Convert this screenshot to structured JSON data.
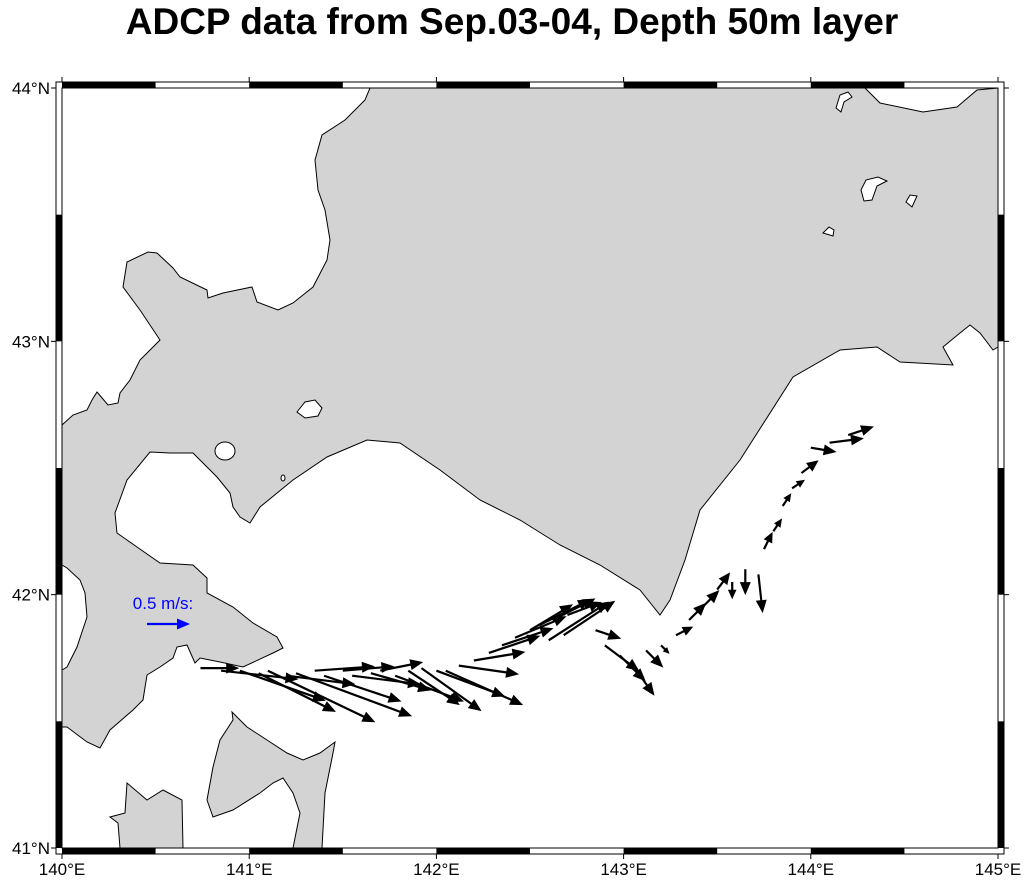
{
  "title": "ADCP data from Sep.03-04, Depth 50m layer",
  "map": {
    "region": {
      "lon_min": 140,
      "lon_max": 145,
      "lat_min": 41,
      "lat_max": 44
    },
    "land_color": "#d3d3d3",
    "sea_color": "#ffffff",
    "coast_color": "#000000",
    "frame_style": "fancy checkered border, 0.5 degree intervals",
    "x_ticks": [
      {
        "value": 140,
        "label": "140°E"
      },
      {
        "value": 141,
        "label": "141°E"
      },
      {
        "value": 142,
        "label": "142°E"
      },
      {
        "value": 143,
        "label": "143°E"
      },
      {
        "value": 144,
        "label": "144°E"
      },
      {
        "value": 145,
        "label": "145°E"
      }
    ],
    "y_ticks": [
      {
        "value": 41,
        "label": "41°N"
      },
      {
        "value": 42,
        "label": "42°N"
      },
      {
        "value": 43,
        "label": "43°N"
      },
      {
        "value": 44,
        "label": "44°N"
      }
    ]
  },
  "legend": {
    "label": "0.5 m/s:",
    "speed": 0.5,
    "color": "#0000ff"
  },
  "vector_color": "#000000",
  "vectors_columns": [
    "lon",
    "lat",
    "u_mps",
    "v_mps"
  ],
  "vectors": [
    [
      140.74,
      41.71,
      0.45,
      0.0
    ],
    [
      140.85,
      41.7,
      0.9,
      -0.1
    ],
    [
      140.95,
      41.7,
      1.0,
      -0.35
    ],
    [
      141.05,
      41.69,
      0.9,
      -0.45
    ],
    [
      141.1,
      41.7,
      1.25,
      -0.6
    ],
    [
      141.2,
      41.68,
      0.8,
      -0.1
    ],
    [
      141.25,
      41.69,
      1.35,
      -0.5
    ],
    [
      141.35,
      41.7,
      0.7,
      0.05
    ],
    [
      141.4,
      41.68,
      0.9,
      -0.3
    ],
    [
      141.5,
      41.7,
      0.6,
      0.05
    ],
    [
      141.55,
      41.68,
      0.8,
      -0.1
    ],
    [
      141.65,
      41.69,
      0.7,
      -0.2
    ],
    [
      141.7,
      41.7,
      0.5,
      0.1
    ],
    [
      141.78,
      41.68,
      0.8,
      -0.3
    ],
    [
      141.85,
      41.7,
      0.6,
      -0.4
    ],
    [
      141.92,
      41.71,
      0.7,
      -0.5
    ],
    [
      142.0,
      41.7,
      0.8,
      -0.3
    ],
    [
      142.05,
      41.7,
      0.9,
      -0.4
    ],
    [
      142.12,
      41.72,
      0.7,
      -0.1
    ],
    [
      142.2,
      41.74,
      0.6,
      0.1
    ],
    [
      142.28,
      41.77,
      0.6,
      0.2
    ],
    [
      142.35,
      41.8,
      0.6,
      0.2
    ],
    [
      142.42,
      41.83,
      0.6,
      0.25
    ],
    [
      142.5,
      41.86,
      0.5,
      0.3
    ],
    [
      142.55,
      41.88,
      0.6,
      0.3
    ],
    [
      142.62,
      41.9,
      0.5,
      0.25
    ],
    [
      142.7,
      41.92,
      0.4,
      0.15
    ],
    [
      142.6,
      41.82,
      0.7,
      0.45
    ],
    [
      142.68,
      41.84,
      0.6,
      0.4
    ],
    [
      142.85,
      41.86,
      0.3,
      -0.1
    ],
    [
      142.9,
      41.8,
      0.4,
      -0.3
    ],
    [
      142.98,
      41.76,
      0.3,
      -0.3
    ],
    [
      143.05,
      41.72,
      0.25,
      -0.35
    ],
    [
      143.12,
      41.78,
      0.2,
      -0.2
    ],
    [
      143.2,
      41.8,
      0.1,
      -0.1
    ],
    [
      143.28,
      41.84,
      0.2,
      0.1
    ],
    [
      143.35,
      41.9,
      0.2,
      0.2
    ],
    [
      143.42,
      41.95,
      0.2,
      0.2
    ],
    [
      143.5,
      42.02,
      0.15,
      0.2
    ],
    [
      143.58,
      42.05,
      0.0,
      -0.2
    ],
    [
      143.65,
      42.1,
      0.0,
      -0.3
    ],
    [
      143.72,
      42.08,
      0.05,
      -0.45
    ],
    [
      143.75,
      42.18,
      0.1,
      0.2
    ],
    [
      143.8,
      42.25,
      0.1,
      0.15
    ],
    [
      143.85,
      42.35,
      0.1,
      0.15
    ],
    [
      143.9,
      42.42,
      0.15,
      0.1
    ],
    [
      143.95,
      42.48,
      0.2,
      0.15
    ],
    [
      144.0,
      42.58,
      0.3,
      -0.05
    ],
    [
      144.1,
      42.6,
      0.4,
      0.05
    ],
    [
      144.2,
      42.63,
      0.3,
      0.1
    ]
  ]
}
